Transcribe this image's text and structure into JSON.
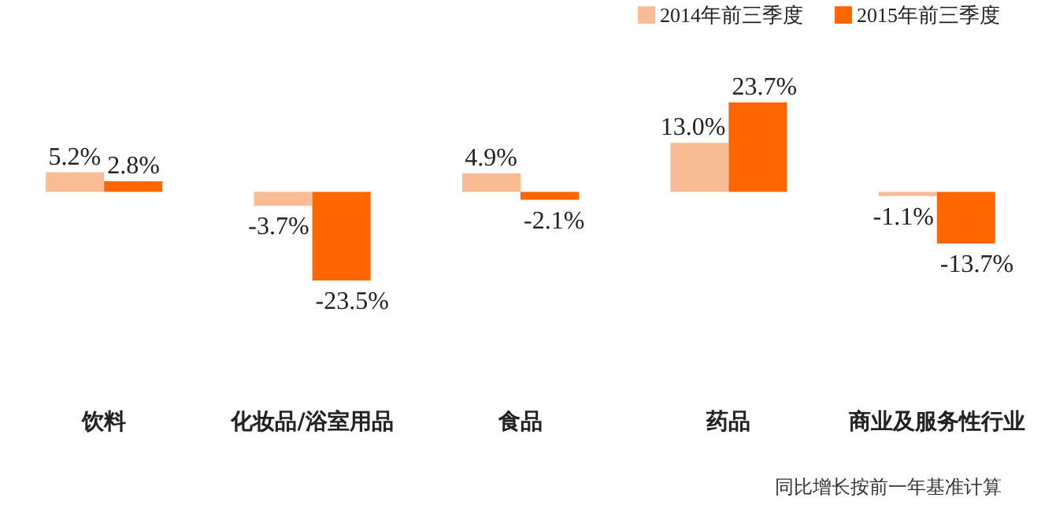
{
  "chart_data": {
    "type": "bar",
    "categories": [
      "饮料",
      "化妆品/浴室用品",
      "食品",
      "药品",
      "商业及服务性行业"
    ],
    "series": [
      {
        "name": "2014年前三季度",
        "color": "#f9bc94",
        "values": [
          5.2,
          -3.7,
          4.9,
          13.0,
          -1.1
        ],
        "value_labels": [
          "5.2%",
          "-3.7%",
          "4.9%",
          "13.0%",
          "-1.1%"
        ]
      },
      {
        "name": "2015年前三季度",
        "color": "#ff6600",
        "values": [
          2.8,
          -23.5,
          -2.1,
          23.7,
          -13.7
        ],
        "value_labels": [
          "2.8%",
          "-23.5%",
          "-2.1%",
          "23.7%",
          "-13.7%"
        ]
      }
    ],
    "legend": "top right",
    "annotations": [
      "同比增长按前一年基准计算"
    ]
  }
}
